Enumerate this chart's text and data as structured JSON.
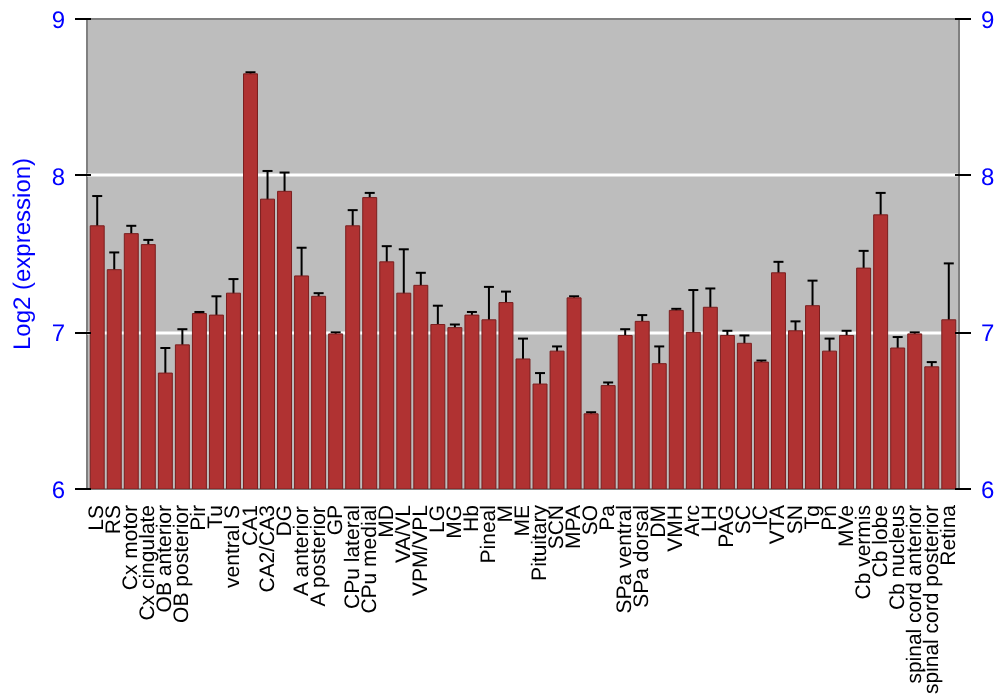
{
  "chart_data": {
    "type": "bar",
    "ylabel": "Log2 (expression)",
    "categories": [
      "LS",
      "RS",
      "Cx motor",
      "Cx cingulate",
      "OB anterior",
      "OB posterior",
      "Pir",
      "Tu",
      "ventral S",
      "CA1",
      "CA2/CA3",
      "DG",
      "A anterior",
      "A posterior",
      "GP",
      "CPu lateral",
      "CPu medial",
      "MD",
      "VA/VL",
      "VPM/VPL",
      "LG",
      "MG",
      "Hb",
      "Pineal",
      "M",
      "ME",
      "Pituitary",
      "SCN",
      "MPA",
      "SO",
      "Pa",
      "SPa ventral",
      "SPa dorsal",
      "DM",
      "VMH",
      "Arc",
      "LH",
      "PAG",
      "SC",
      "IC",
      "VTA",
      "SN",
      "Tg",
      "Pn",
      "MVe",
      "Cb vermis",
      "Cb lobe",
      "Cb nucleus",
      "spinal cord anterior",
      "spinal cord posterior",
      "Retina"
    ],
    "values": [
      7.68,
      7.4,
      7.63,
      7.56,
      6.74,
      6.92,
      7.12,
      7.11,
      7.25,
      8.65,
      7.85,
      7.9,
      7.36,
      7.23,
      6.99,
      7.68,
      7.86,
      7.45,
      7.25,
      7.3,
      7.05,
      7.03,
      7.11,
      7.08,
      7.19,
      6.83,
      6.67,
      6.88,
      7.22,
      6.48,
      6.66,
      6.98,
      7.07,
      6.8,
      7.14,
      7.0,
      7.16,
      6.98,
      6.93,
      6.81,
      7.38,
      7.01,
      7.17,
      6.88,
      6.98,
      7.41,
      7.75,
      6.9,
      6.99,
      6.78,
      7.08
    ],
    "errors": [
      0.19,
      0.11,
      0.05,
      0.03,
      0.16,
      0.1,
      0.01,
      0.12,
      0.09,
      0.01,
      0.18,
      0.12,
      0.18,
      0.02,
      0.01,
      0.1,
      0.03,
      0.1,
      0.28,
      0.08,
      0.12,
      0.02,
      0.02,
      0.21,
      0.07,
      0.13,
      0.07,
      0.03,
      0.01,
      0.01,
      0.02,
      0.04,
      0.04,
      0.11,
      0.01,
      0.27,
      0.12,
      0.03,
      0.05,
      0.01,
      0.07,
      0.06,
      0.16,
      0.08,
      0.03,
      0.11,
      0.14,
      0.07,
      0.01,
      0.03,
      0.36
    ],
    "color": "#b03232",
    "ylim": [
      6,
      9
    ],
    "yticks": [
      6,
      7,
      8,
      9
    ],
    "y2lim": [
      6,
      9
    ],
    "y2ticks": [
      6,
      7,
      8,
      9
    ],
    "grid": "y"
  }
}
